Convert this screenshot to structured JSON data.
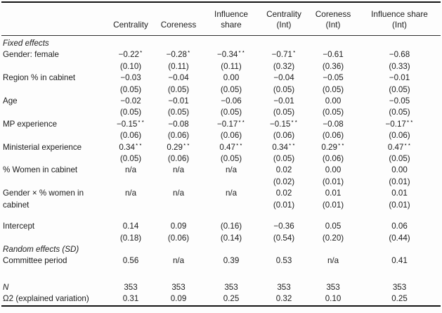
{
  "table": {
    "headers": {
      "c1": "Centrality",
      "c2": "Coreness",
      "c3": "Influence\nshare",
      "c4": "Centrality\n(Int)",
      "c5": "Coreness\n(Int)",
      "c6": "Influence share\n(Int)"
    },
    "rows": [
      {
        "label": "Fixed effects",
        "cells": []
      },
      {
        "label": "Gender: female",
        "cells": [
          "−0.22⋆",
          "−0.28⋆",
          "−0.34⋆⋆",
          "−0.71⋆",
          "−0.61",
          "−0.68"
        ]
      },
      {
        "label": "",
        "cells": [
          "(0.10)",
          "(0.11)",
          "(0.11)",
          "(0.32)",
          "(0.36)",
          "(0.33)"
        ]
      },
      {
        "label": "Region % in cabinet",
        "cells": [
          "−0.03",
          "−0.04",
          "0.00",
          "−0.04",
          "−0.05",
          "−0.01"
        ]
      },
      {
        "label": "",
        "cells": [
          "(0.05)",
          "(0.05)",
          "(0.05)",
          "(0.05)",
          "(0.05)",
          "(0.05)"
        ]
      },
      {
        "label": "Age",
        "cells": [
          "−0.02",
          "−0.01",
          "−0.06",
          "−0.01",
          "0.00",
          "−0.05"
        ]
      },
      {
        "label": "",
        "cells": [
          "(0.05)",
          "(0.05)",
          "(0.05)",
          "(0.05)",
          "(0.05)",
          "(0.05)"
        ]
      },
      {
        "label": "MP experience",
        "cells": [
          "−0.15⋆⋆",
          "−0.08",
          "−0.17⋆⋆",
          "−0.15⋆⋆",
          "−0.08",
          "−0.17⋆⋆"
        ]
      },
      {
        "label": "",
        "cells": [
          "(0.06)",
          "(0.06)",
          "(0.06)",
          "(0.06)",
          "(0.06)",
          "(0.06)"
        ]
      },
      {
        "label": "Ministerial experience",
        "cells": [
          "0.34⋆⋆",
          "0.29⋆⋆",
          "0.47⋆⋆",
          "0.34⋆⋆",
          "0.29⋆⋆",
          "0.47⋆⋆"
        ]
      },
      {
        "label": "",
        "cells": [
          "(0.05)",
          "(0.06)",
          "(0.05)",
          "(0.05)",
          "(0.06)",
          "(0.05)"
        ]
      },
      {
        "label": "% Women in cabinet",
        "cells": [
          "n/a",
          "n/a",
          "n/a",
          "0.02",
          "0.00",
          "0.00"
        ]
      },
      {
        "label": "",
        "cells": [
          "",
          "",
          "",
          "(0.02)",
          "(0.01)",
          "(0.01)"
        ]
      },
      {
        "label": "Gender × % women in",
        "cells": [
          "n/a",
          "n/a",
          "n/a",
          "0.02",
          "0.01",
          "0.01"
        ]
      },
      {
        "label": "cabinet",
        "cells": [
          "",
          "",
          "",
          "(0.01)",
          "(0.01)",
          "(0.01)"
        ]
      },
      {
        "label": "Intercept",
        "cells": [
          "0.14",
          "0.09",
          "(0.16)",
          "−0.36",
          "0.05",
          "0.06"
        ]
      },
      {
        "label": "",
        "cells": [
          "(0.18)",
          "(0.06)",
          "(0.14)",
          "(0.54)",
          "(0.20)",
          "(0.44)"
        ]
      },
      {
        "label": "Random effects (SD)",
        "cells": []
      },
      {
        "label": "Committee period",
        "cells": [
          "0.56",
          "n/a",
          "0.39",
          "0.53",
          "n/a",
          "0.41"
        ]
      },
      {
        "label": "N",
        "cells": [
          "353",
          "353",
          "353",
          "353",
          "353",
          "353"
        ]
      },
      {
        "label": "Ω2 (explained variation)",
        "cells": [
          "0.31",
          "0.09",
          "0.25",
          "0.32",
          "0.10",
          "0.25"
        ]
      }
    ]
  }
}
